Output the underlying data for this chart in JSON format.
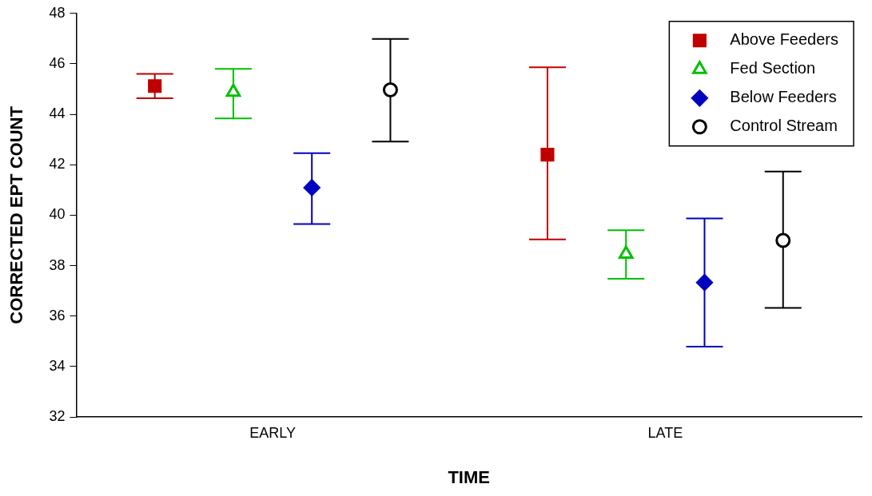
{
  "chart_data": {
    "type": "scatter",
    "xlabel": "TIME",
    "ylabel": "CORRECTED EPT COUNT",
    "categories": [
      "EARLY",
      "LATE"
    ],
    "ylim": [
      32,
      48
    ],
    "yticks": [
      32,
      34,
      36,
      38,
      40,
      42,
      44,
      46,
      48
    ],
    "grid": false,
    "legend": "top right",
    "series": [
      {
        "name": "Above Feeders",
        "color": "#c00000",
        "marker": "square",
        "values": [
          45.12,
          42.4
        ],
        "errors": [
          [
            44.64,
            45.6
          ],
          [
            39.04,
            45.86
          ]
        ]
      },
      {
        "name": "Fed Section",
        "color": "#00c000",
        "marker": "triangle",
        "values": [
          44.88,
          38.46
        ],
        "errors": [
          [
            43.84,
            45.8
          ],
          [
            37.48,
            39.4
          ]
        ]
      },
      {
        "name": "Below Feeders",
        "color": "#0000c0",
        "marker": "diamond",
        "values": [
          41.09,
          37.33
        ],
        "errors": [
          [
            39.65,
            42.46
          ],
          [
            34.79,
            39.87
          ]
        ]
      },
      {
        "name": "Control Stream",
        "color": "#000000",
        "marker": "circle",
        "values": [
          44.97,
          39.0
        ],
        "errors": [
          [
            42.92,
            46.99
          ],
          [
            36.32,
            41.73
          ]
        ]
      }
    ]
  }
}
